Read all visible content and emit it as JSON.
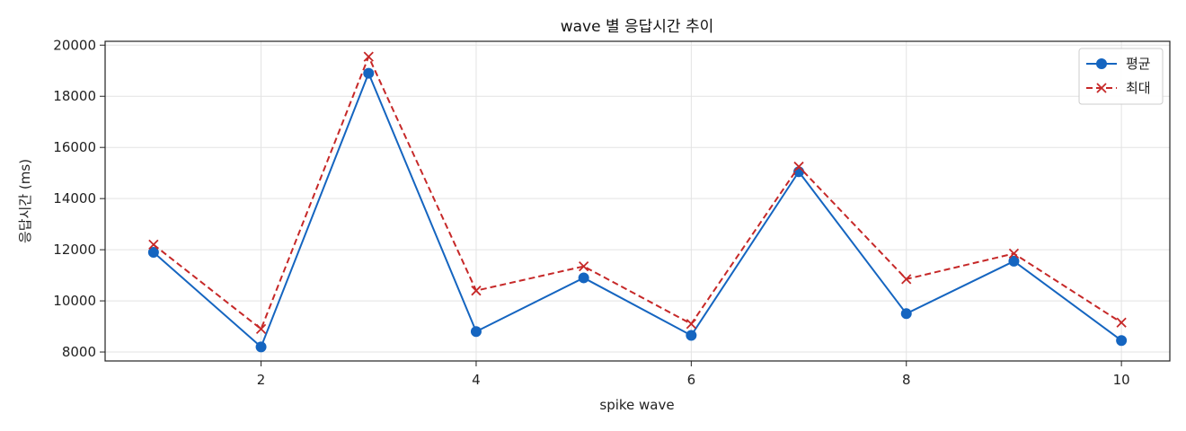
{
  "chart_data": {
    "type": "line",
    "title": "wave 별 응답시간 추이",
    "xlabel": "spike wave",
    "ylabel": "응답시간 (ms)",
    "x": [
      1,
      2,
      3,
      4,
      5,
      6,
      7,
      8,
      9,
      10
    ],
    "xticks": [
      2,
      4,
      6,
      8,
      10
    ],
    "yticks": [
      8000,
      10000,
      12000,
      14000,
      16000,
      18000,
      20000
    ],
    "xlim": [
      0.55,
      10.45
    ],
    "ylim": [
      7650,
      20150
    ],
    "grid": true,
    "legend_position": "top-right",
    "series": [
      {
        "name": "평균",
        "color": "#1565c0",
        "line_style": "solid",
        "marker": "circle",
        "values": [
          11900,
          8200,
          18900,
          8800,
          10900,
          8650,
          15050,
          9500,
          11550,
          8450
        ]
      },
      {
        "name": "최대",
        "color": "#c62828",
        "line_style": "dashed",
        "marker": "x",
        "values": [
          12200,
          8900,
          19550,
          10400,
          11350,
          9100,
          15250,
          10850,
          11850,
          9150
        ]
      }
    ]
  }
}
